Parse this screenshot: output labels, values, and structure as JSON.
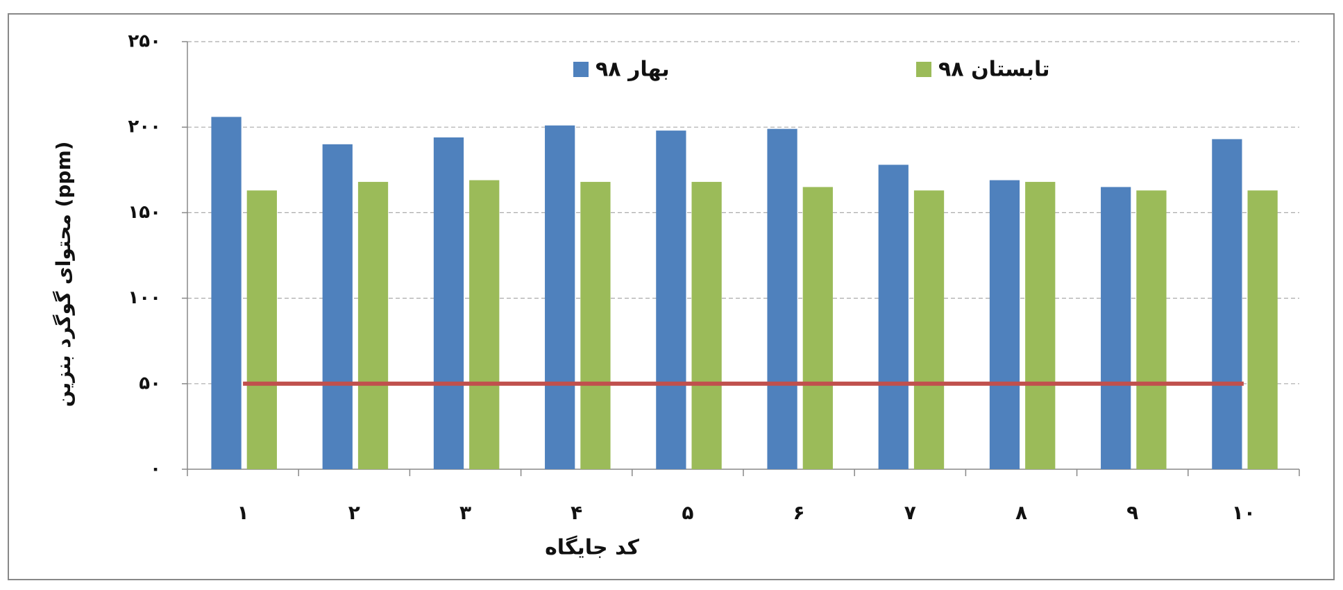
{
  "chart_data": {
    "type": "bar",
    "x_label": "کد جایگاه",
    "y_label": "محتوای گوگرد بنزین (ppm)",
    "categories": [
      "۱",
      "۲",
      "۳",
      "۴",
      "۵",
      "۶",
      "۷",
      "۸",
      "۹",
      "۱۰"
    ],
    "series": [
      {
        "name": "بهار ۹۸",
        "color": "#4f81bd",
        "values": [
          206,
          190,
          194,
          201,
          198,
          199,
          178,
          169,
          165,
          193
        ]
      },
      {
        "name": "تابستان ۹۸",
        "color": "#9bbb59",
        "values": [
          163,
          168,
          169,
          168,
          168,
          165,
          163,
          168,
          163,
          163
        ]
      }
    ],
    "threshold": {
      "value": 50,
      "color": "#c0504d"
    },
    "ylim": [
      0,
      250
    ],
    "yticks": [
      {
        "value": 0,
        "label": "۰"
      },
      {
        "value": 50,
        "label": "۵۰"
      },
      {
        "value": 100,
        "label": "۱۰۰"
      },
      {
        "value": 150,
        "label": "۱۵۰"
      },
      {
        "value": 200,
        "label": "۲۰۰"
      },
      {
        "value": 250,
        "label": "۲۵۰"
      }
    ],
    "grid": true,
    "legend": "top"
  }
}
